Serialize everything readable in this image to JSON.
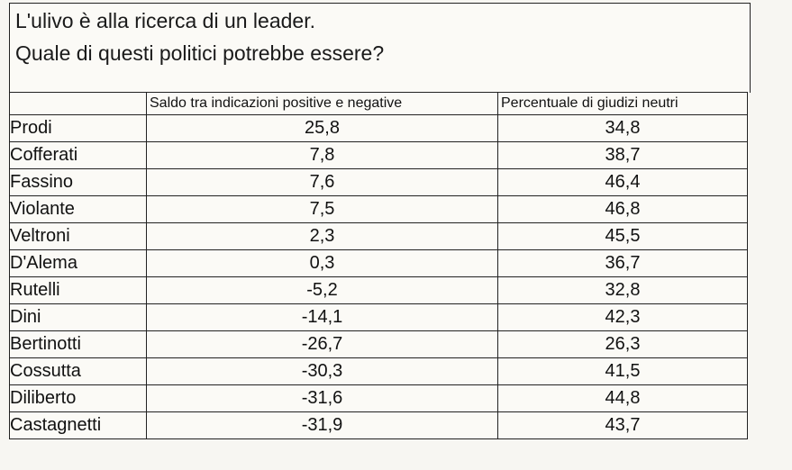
{
  "title": {
    "line1": "L'ulivo è alla ricerca di un leader.",
    "line2": "Quale di questi politici potrebbe essere?"
  },
  "table": {
    "headers": [
      "",
      "Saldo tra indicazioni positive e negative",
      "Percentuale di giudizi neutri"
    ],
    "rows": [
      {
        "name": "Prodi",
        "saldo": "25,8",
        "neutri": "34,8"
      },
      {
        "name": "Cofferati",
        "saldo": "7,8",
        "neutri": "38,7"
      },
      {
        "name": "Fassino",
        "saldo": "7,6",
        "neutri": "46,4"
      },
      {
        "name": "Violante",
        "saldo": "7,5",
        "neutri": "46,8"
      },
      {
        "name": "Veltroni",
        "saldo": "2,3",
        "neutri": "45,5"
      },
      {
        "name": "D'Alema",
        "saldo": "0,3",
        "neutri": "36,7"
      },
      {
        "name": "Rutelli",
        "saldo": "-5,2",
        "neutri": "32,8"
      },
      {
        "name": "Dini",
        "saldo": "-14,1",
        "neutri": "42,3"
      },
      {
        "name": "Bertinotti",
        "saldo": "-26,7",
        "neutri": "26,3"
      },
      {
        "name": "Cossutta",
        "saldo": "-30,3",
        "neutri": "41,5"
      },
      {
        "name": "Diliberto",
        "saldo": "-31,6",
        "neutri": "44,8"
      },
      {
        "name": "Castagnetti",
        "saldo": "-31,9",
        "neutri": "43,7"
      }
    ]
  }
}
